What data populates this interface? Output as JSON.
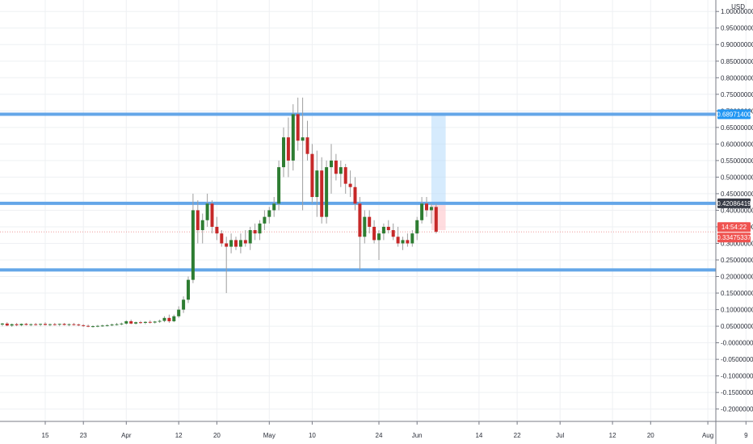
{
  "chart_data": {
    "type": "candlestick",
    "currency": "USD",
    "y_range": [
      -0.23,
      1.02
    ],
    "y_ticks": [
      "1.00000000",
      "0.95000000",
      "0.90000000",
      "0.85000000",
      "0.80000000",
      "0.75000000",
      "0.70000000",
      "0.65000000",
      "0.60000000",
      "0.55000000",
      "0.50000000",
      "0.45000000",
      "0.40000000",
      "0.35000000",
      "0.30000000",
      "0.25000000",
      "0.20000000",
      "0.15000000",
      "0.10000000",
      "0.05000000",
      "-0.00000000",
      "-0.05000000",
      "-0.10000000",
      "-0.15000000",
      "-0.20000000"
    ],
    "y_tick_values": [
      1.0,
      0.95,
      0.9,
      0.85,
      0.8,
      0.75,
      0.7,
      0.65,
      0.6,
      0.55,
      0.5,
      0.45,
      0.4,
      0.35,
      0.3,
      0.25,
      0.2,
      0.15,
      0.1,
      0.05,
      0.0,
      -0.05,
      -0.1,
      -0.15,
      -0.2
    ],
    "x_ticks": [
      {
        "label": "15",
        "day": 0
      },
      {
        "label": "23",
        "day": 8
      },
      {
        "label": "Apr",
        "day": 17
      },
      {
        "label": "12",
        "day": 28
      },
      {
        "label": "20",
        "day": 36
      },
      {
        "label": "May",
        "day": 47
      },
      {
        "label": "10",
        "day": 56
      },
      {
        "label": "24",
        "day": 70
      },
      {
        "label": "Jun",
        "day": 78
      },
      {
        "label": "14",
        "day": 91
      },
      {
        "label": "22",
        "day": 99
      },
      {
        "label": "Jul",
        "day": 108
      },
      {
        "label": "12",
        "day": 119
      },
      {
        "label": "20",
        "day": 127
      },
      {
        "label": "Aug",
        "day": 139
      },
      {
        "label": "9",
        "day": 147
      }
    ],
    "horizontal_levels": [
      {
        "value": 0.689714,
        "label": "0.68971400",
        "tag_color": "#2196f3"
      },
      {
        "value": 0.42086419,
        "label": "0.42086419",
        "tag_color": "#363a45"
      },
      {
        "value": 0.22,
        "label": "",
        "tag_color": ""
      }
    ],
    "current_price": {
      "value": 0.33475337,
      "label": "0.33475337",
      "countdown": "14:54:22",
      "tag_color": "#ef5350"
    },
    "position": {
      "entry": 0.42086419,
      "target": 0.689714,
      "stop": 0.34,
      "start_day": 81,
      "end_day": 84
    },
    "colors": {
      "up": "#2e7d32",
      "down": "#c62828",
      "level": "#64a6e8",
      "grid": "#eef0f3"
    },
    "candles": [
      {
        "day": -13,
        "o": 0.05,
        "h": 0.055,
        "l": 0.045,
        "c": 0.052
      },
      {
        "day": -12,
        "o": 0.052,
        "h": 0.056,
        "l": 0.048,
        "c": 0.05
      },
      {
        "day": -11,
        "o": 0.05,
        "h": 0.062,
        "l": 0.048,
        "c": 0.06
      },
      {
        "day": -10,
        "o": 0.06,
        "h": 0.064,
        "l": 0.052,
        "c": 0.055
      },
      {
        "day": -9,
        "o": 0.055,
        "h": 0.06,
        "l": 0.05,
        "c": 0.058
      },
      {
        "day": -8,
        "o": 0.058,
        "h": 0.062,
        "l": 0.05,
        "c": 0.052
      },
      {
        "day": -7,
        "o": 0.052,
        "h": 0.058,
        "l": 0.048,
        "c": 0.056
      },
      {
        "day": -6,
        "o": 0.056,
        "h": 0.06,
        "l": 0.05,
        "c": 0.053
      },
      {
        "day": -5,
        "o": 0.053,
        "h": 0.058,
        "l": 0.05,
        "c": 0.057
      },
      {
        "day": -4,
        "o": 0.057,
        "h": 0.06,
        "l": 0.052,
        "c": 0.054
      },
      {
        "day": -3,
        "o": 0.054,
        "h": 0.058,
        "l": 0.05,
        "c": 0.056
      },
      {
        "day": -2,
        "o": 0.056,
        "h": 0.06,
        "l": 0.052,
        "c": 0.055
      },
      {
        "day": -1,
        "o": 0.055,
        "h": 0.058,
        "l": 0.05,
        "c": 0.057
      },
      {
        "day": 0,
        "o": 0.057,
        "h": 0.062,
        "l": 0.052,
        "c": 0.054
      },
      {
        "day": 1,
        "o": 0.054,
        "h": 0.058,
        "l": 0.05,
        "c": 0.056
      },
      {
        "day": 2,
        "o": 0.056,
        "h": 0.06,
        "l": 0.052,
        "c": 0.055
      },
      {
        "day": 3,
        "o": 0.055,
        "h": 0.058,
        "l": 0.05,
        "c": 0.057
      },
      {
        "day": 4,
        "o": 0.057,
        "h": 0.06,
        "l": 0.052,
        "c": 0.054
      },
      {
        "day": 5,
        "o": 0.054,
        "h": 0.058,
        "l": 0.05,
        "c": 0.056
      },
      {
        "day": 6,
        "o": 0.056,
        "h": 0.06,
        "l": 0.052,
        "c": 0.055
      },
      {
        "day": 7,
        "o": 0.055,
        "h": 0.058,
        "l": 0.05,
        "c": 0.053
      },
      {
        "day": 8,
        "o": 0.053,
        "h": 0.056,
        "l": 0.048,
        "c": 0.051
      },
      {
        "day": 9,
        "o": 0.051,
        "h": 0.055,
        "l": 0.047,
        "c": 0.049
      },
      {
        "day": 10,
        "o": 0.049,
        "h": 0.053,
        "l": 0.046,
        "c": 0.05
      },
      {
        "day": 11,
        "o": 0.05,
        "h": 0.054,
        "l": 0.047,
        "c": 0.051
      },
      {
        "day": 12,
        "o": 0.051,
        "h": 0.055,
        "l": 0.048,
        "c": 0.052
      },
      {
        "day": 13,
        "o": 0.052,
        "h": 0.056,
        "l": 0.049,
        "c": 0.053
      },
      {
        "day": 14,
        "o": 0.053,
        "h": 0.058,
        "l": 0.05,
        "c": 0.055
      },
      {
        "day": 15,
        "o": 0.055,
        "h": 0.06,
        "l": 0.052,
        "c": 0.056
      },
      {
        "day": 16,
        "o": 0.056,
        "h": 0.061,
        "l": 0.053,
        "c": 0.058
      },
      {
        "day": 17,
        "o": 0.058,
        "h": 0.068,
        "l": 0.055,
        "c": 0.065
      },
      {
        "day": 18,
        "o": 0.065,
        "h": 0.07,
        "l": 0.056,
        "c": 0.058
      },
      {
        "day": 19,
        "o": 0.058,
        "h": 0.064,
        "l": 0.055,
        "c": 0.062
      },
      {
        "day": 20,
        "o": 0.062,
        "h": 0.066,
        "l": 0.057,
        "c": 0.06
      },
      {
        "day": 21,
        "o": 0.06,
        "h": 0.065,
        "l": 0.056,
        "c": 0.063
      },
      {
        "day": 22,
        "o": 0.063,
        "h": 0.068,
        "l": 0.058,
        "c": 0.061
      },
      {
        "day": 23,
        "o": 0.061,
        "h": 0.066,
        "l": 0.058,
        "c": 0.064
      },
      {
        "day": 24,
        "o": 0.064,
        "h": 0.07,
        "l": 0.06,
        "c": 0.066
      },
      {
        "day": 25,
        "o": 0.066,
        "h": 0.08,
        "l": 0.062,
        "c": 0.075
      },
      {
        "day": 26,
        "o": 0.075,
        "h": 0.085,
        "l": 0.06,
        "c": 0.065
      },
      {
        "day": 27,
        "o": 0.065,
        "h": 0.085,
        "l": 0.062,
        "c": 0.08
      },
      {
        "day": 28,
        "o": 0.08,
        "h": 0.11,
        "l": 0.075,
        "c": 0.1
      },
      {
        "day": 29,
        "o": 0.1,
        "h": 0.14,
        "l": 0.09,
        "c": 0.13
      },
      {
        "day": 30,
        "o": 0.13,
        "h": 0.2,
        "l": 0.12,
        "c": 0.19
      },
      {
        "day": 31,
        "o": 0.19,
        "h": 0.45,
        "l": 0.18,
        "c": 0.4
      },
      {
        "day": 32,
        "o": 0.4,
        "h": 0.43,
        "l": 0.3,
        "c": 0.34
      },
      {
        "day": 33,
        "o": 0.34,
        "h": 0.39,
        "l": 0.3,
        "c": 0.37
      },
      {
        "day": 34,
        "o": 0.37,
        "h": 0.45,
        "l": 0.35,
        "c": 0.42
      },
      {
        "day": 35,
        "o": 0.42,
        "h": 0.43,
        "l": 0.33,
        "c": 0.35
      },
      {
        "day": 36,
        "o": 0.35,
        "h": 0.38,
        "l": 0.31,
        "c": 0.33
      },
      {
        "day": 37,
        "o": 0.33,
        "h": 0.34,
        "l": 0.29,
        "c": 0.3
      },
      {
        "day": 38,
        "o": 0.3,
        "h": 0.32,
        "l": 0.15,
        "c": 0.29
      },
      {
        "day": 39,
        "o": 0.29,
        "h": 0.33,
        "l": 0.27,
        "c": 0.31
      },
      {
        "day": 40,
        "o": 0.31,
        "h": 0.32,
        "l": 0.28,
        "c": 0.29
      },
      {
        "day": 41,
        "o": 0.29,
        "h": 0.33,
        "l": 0.27,
        "c": 0.31
      },
      {
        "day": 42,
        "o": 0.31,
        "h": 0.34,
        "l": 0.29,
        "c": 0.3
      },
      {
        "day": 43,
        "o": 0.3,
        "h": 0.35,
        "l": 0.28,
        "c": 0.34
      },
      {
        "day": 44,
        "o": 0.34,
        "h": 0.36,
        "l": 0.31,
        "c": 0.33
      },
      {
        "day": 45,
        "o": 0.33,
        "h": 0.37,
        "l": 0.31,
        "c": 0.36
      },
      {
        "day": 46,
        "o": 0.36,
        "h": 0.4,
        "l": 0.34,
        "c": 0.38
      },
      {
        "day": 47,
        "o": 0.38,
        "h": 0.41,
        "l": 0.36,
        "c": 0.4
      },
      {
        "day": 48,
        "o": 0.4,
        "h": 0.44,
        "l": 0.38,
        "c": 0.42
      },
      {
        "day": 49,
        "o": 0.42,
        "h": 0.55,
        "l": 0.4,
        "c": 0.53
      },
      {
        "day": 50,
        "o": 0.53,
        "h": 0.65,
        "l": 0.5,
        "c": 0.62
      },
      {
        "day": 51,
        "o": 0.62,
        "h": 0.68,
        "l": 0.5,
        "c": 0.55
      },
      {
        "day": 52,
        "o": 0.55,
        "h": 0.72,
        "l": 0.52,
        "c": 0.69
      },
      {
        "day": 53,
        "o": 0.69,
        "h": 0.74,
        "l": 0.58,
        "c": 0.61
      },
      {
        "day": 54,
        "o": 0.61,
        "h": 0.74,
        "l": 0.4,
        "c": 0.62
      },
      {
        "day": 55,
        "o": 0.62,
        "h": 0.67,
        "l": 0.55,
        "c": 0.57
      },
      {
        "day": 56,
        "o": 0.57,
        "h": 0.6,
        "l": 0.42,
        "c": 0.44
      },
      {
        "day": 57,
        "o": 0.44,
        "h": 0.58,
        "l": 0.38,
        "c": 0.52
      },
      {
        "day": 58,
        "o": 0.52,
        "h": 0.56,
        "l": 0.36,
        "c": 0.38
      },
      {
        "day": 59,
        "o": 0.38,
        "h": 0.55,
        "l": 0.36,
        "c": 0.53
      },
      {
        "day": 60,
        "o": 0.53,
        "h": 0.6,
        "l": 0.45,
        "c": 0.55
      },
      {
        "day": 61,
        "o": 0.55,
        "h": 0.57,
        "l": 0.49,
        "c": 0.51
      },
      {
        "day": 62,
        "o": 0.51,
        "h": 0.55,
        "l": 0.47,
        "c": 0.53
      },
      {
        "day": 63,
        "o": 0.53,
        "h": 0.54,
        "l": 0.45,
        "c": 0.48
      },
      {
        "day": 64,
        "o": 0.48,
        "h": 0.52,
        "l": 0.44,
        "c": 0.47
      },
      {
        "day": 65,
        "o": 0.47,
        "h": 0.5,
        "l": 0.4,
        "c": 0.42
      },
      {
        "day": 66,
        "o": 0.42,
        "h": 0.44,
        "l": 0.22,
        "c": 0.32
      },
      {
        "day": 67,
        "o": 0.32,
        "h": 0.4,
        "l": 0.3,
        "c": 0.38
      },
      {
        "day": 68,
        "o": 0.38,
        "h": 0.4,
        "l": 0.33,
        "c": 0.35
      },
      {
        "day": 69,
        "o": 0.35,
        "h": 0.37,
        "l": 0.3,
        "c": 0.31
      },
      {
        "day": 70,
        "o": 0.31,
        "h": 0.34,
        "l": 0.25,
        "c": 0.33
      },
      {
        "day": 71,
        "o": 0.33,
        "h": 0.36,
        "l": 0.31,
        "c": 0.35
      },
      {
        "day": 72,
        "o": 0.35,
        "h": 0.37,
        "l": 0.33,
        "c": 0.34
      },
      {
        "day": 73,
        "o": 0.34,
        "h": 0.36,
        "l": 0.31,
        "c": 0.32
      },
      {
        "day": 74,
        "o": 0.32,
        "h": 0.35,
        "l": 0.29,
        "c": 0.3
      },
      {
        "day": 75,
        "o": 0.3,
        "h": 0.32,
        "l": 0.28,
        "c": 0.31
      },
      {
        "day": 76,
        "o": 0.31,
        "h": 0.33,
        "l": 0.29,
        "c": 0.3
      },
      {
        "day": 77,
        "o": 0.3,
        "h": 0.34,
        "l": 0.29,
        "c": 0.33
      },
      {
        "day": 78,
        "o": 0.33,
        "h": 0.38,
        "l": 0.31,
        "c": 0.37
      },
      {
        "day": 79,
        "o": 0.37,
        "h": 0.44,
        "l": 0.36,
        "c": 0.42
      },
      {
        "day": 80,
        "o": 0.42,
        "h": 0.44,
        "l": 0.38,
        "c": 0.4
      },
      {
        "day": 81,
        "o": 0.4,
        "h": 0.42,
        "l": 0.36,
        "c": 0.41
      },
      {
        "day": 82,
        "o": 0.41,
        "h": 0.42,
        "l": 0.33,
        "c": 0.335
      }
    ]
  }
}
